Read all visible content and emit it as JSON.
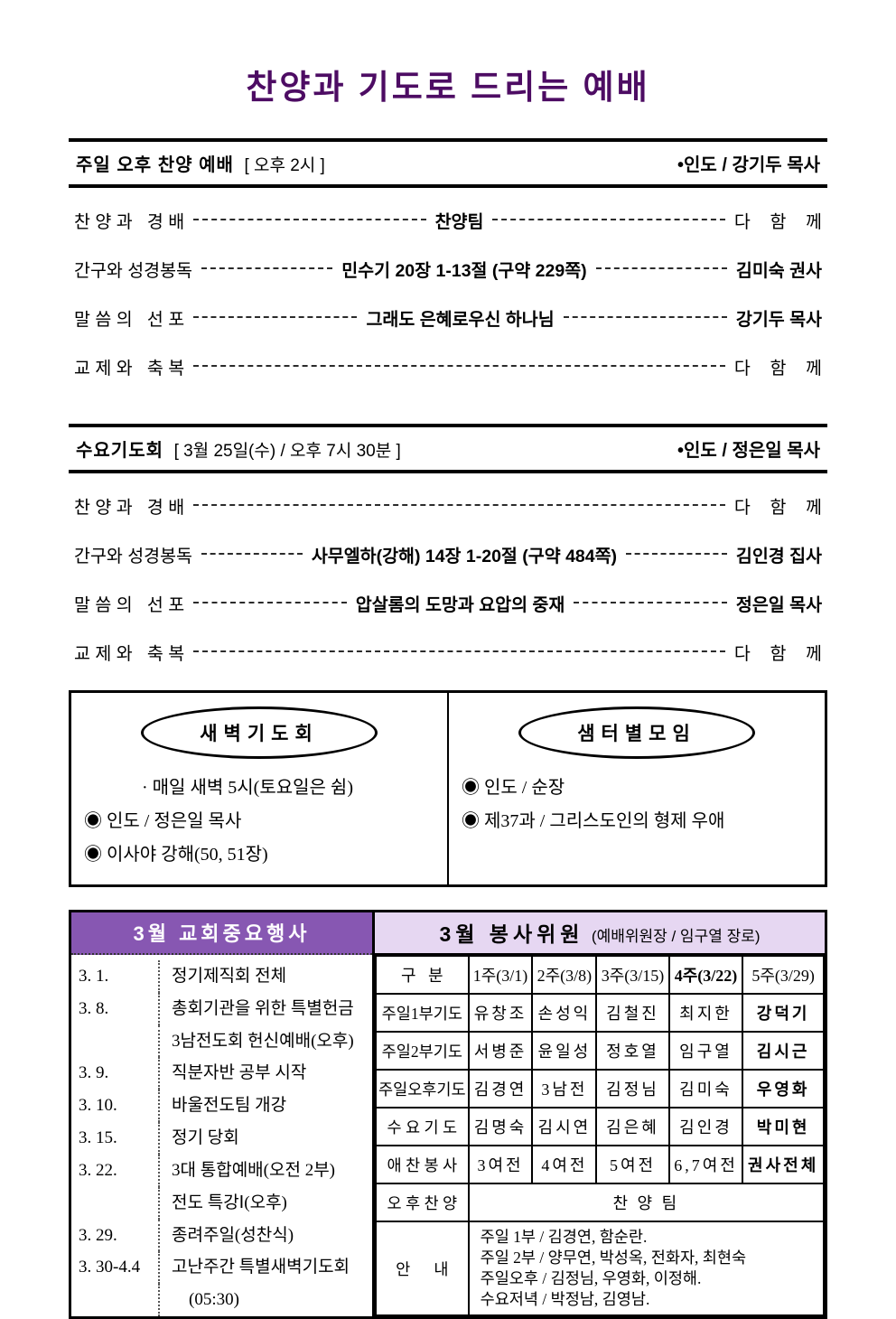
{
  "title": "찬양과 기도로 드리는 예배",
  "colors": {
    "title_purple": "#4D0C63",
    "events_header_bg": "#8757B2",
    "events_header_text": "#ffffff",
    "volunteers_header_bg": "#E6D7F2",
    "border_black": "#000000"
  },
  "services": [
    {
      "name": "주일 오후 찬양 예배",
      "time": "[ 오후 2시 ]",
      "leader": "•인도 / 강기두 목사",
      "items": [
        {
          "label": "찬 양 과   경 배",
          "center": "찬양팀",
          "right": "다    함    께",
          "right_bold": false
        },
        {
          "label": "간구와 성경봉독",
          "center": "민수기 20장 1-13절 (구약 229쪽)",
          "right": "김미숙 권사",
          "right_bold": true
        },
        {
          "label": "말 씀 의   선 포",
          "center": "그래도 은혜로우신 하나님",
          "right": "강기두 목사",
          "right_bold": true
        },
        {
          "label": "교 제 와   축 복",
          "center": "",
          "right": "다    함    께",
          "right_bold": false
        }
      ]
    },
    {
      "name": "수요기도회",
      "time": "[ 3월 25일(수) / 오후 7시 30분 ]",
      "leader": "•인도 / 정은일 목사",
      "items": [
        {
          "label": "찬 양 과   경 배",
          "center": "",
          "right": "다    함    께",
          "right_bold": false
        },
        {
          "label": "간구와 성경봉독",
          "center": "사무엘하(강해) 14장 1-20절 (구약 484쪽)",
          "right": "김인경 집사",
          "right_bold": true
        },
        {
          "label": "말 씀 의   선 포",
          "center": "압살롬의 도망과 요압의 중재",
          "right": "정은일 목사",
          "right_bold": true
        },
        {
          "label": "교 제 와   축 복",
          "center": "",
          "right": "다    함    께",
          "right_bold": false
        }
      ]
    }
  ],
  "dawn_prayer_box": {
    "title": "새벽기도회",
    "lines": [
      "· 매일 새벽 5시(토요일은 쉼)",
      "◉ 인도 / 정은일 목사",
      "◉ 이사야 강해(50, 51장)"
    ]
  },
  "cell_group_box": {
    "title": "샘터별모임",
    "lines": [
      "◉ 인도 / 순장",
      "◉ 제37과 / 그리스도인의 형제 우애"
    ]
  },
  "events_table": {
    "title": "3월 교회중요행사",
    "rows": [
      {
        "date": "3. 1.",
        "event": "정기제직회 전체"
      },
      {
        "date": "3. 8.",
        "event": "총회기관을 위한 특별헌금"
      },
      {
        "date": "",
        "event": "3남전도회 헌신예배(오후)"
      },
      {
        "date": "3. 9.",
        "event": "직분자반 공부 시작"
      },
      {
        "date": "3. 10.",
        "event": "바울전도팀 개강"
      },
      {
        "date": "3. 15.",
        "event": "정기 당회"
      },
      {
        "date": "3. 22.",
        "event": "3대 통합예배(오전 2부)"
      },
      {
        "date": "",
        "event": "전도 특강Ⅰ(오후)"
      },
      {
        "date": "3. 29.",
        "event": "종려주일(성찬식)"
      },
      {
        "date": "3. 30-4.4",
        "event": "고난주간 특별새벽기도회"
      },
      {
        "date": "",
        "event": "    (05:30)"
      }
    ]
  },
  "volunteers_table": {
    "title": "3월 봉사위원",
    "subtitle": "(예배위원장 / 임구열 장로)",
    "columns": [
      "구   분",
      "1주(3/1)",
      "2주(3/8)",
      "3주(3/15)",
      "4주(3/22)",
      "5주(3/29)"
    ],
    "bold_column": 4,
    "rows": [
      [
        "주일1부기도",
        "유창조",
        "손성익",
        "김철진",
        "최지한",
        "강덕기"
      ],
      [
        "주일2부기도",
        "서병준",
        "윤일성",
        "정호열",
        "임구열",
        "김시근"
      ],
      [
        "주일오후기도",
        "김경연",
        "3남전",
        "김정님",
        "김미숙",
        "우영화"
      ],
      [
        "수 요 기 도",
        "김명숙",
        "김시연",
        "김은혜",
        "김인경",
        "박미현"
      ],
      [
        "애 찬 봉 사",
        "3여전",
        "4여전",
        "5여전",
        "6,7여전",
        "권사전체"
      ]
    ],
    "afternoon_praise": {
      "label": "오 후 찬 양",
      "value": "찬 양 팀"
    },
    "info": {
      "label": "안      내",
      "lines": [
        "주일 1부 / 김경연, 함순란.",
        "주일 2부 / 양무연, 박성옥, 전화자, 최현숙",
        "주일오후 / 김정님, 우영화, 이정해.",
        "수요저녁 / 박정남, 김영남."
      ]
    }
  }
}
